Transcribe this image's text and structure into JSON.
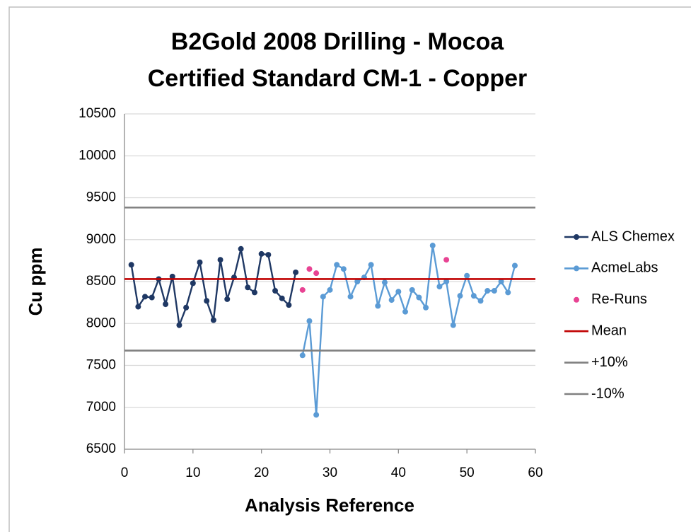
{
  "chart_data": {
    "type": "line",
    "title": "B2Gold 2008 Drilling - Mocoa",
    "subtitle": "Certified Standard CM-1 - Copper",
    "x_label": "Analysis Reference",
    "y_label": "Cu ppm",
    "xlim": [
      0,
      60
    ],
    "xticks": [
      0,
      10,
      20,
      30,
      40,
      50,
      60
    ],
    "ylim": [
      6500,
      10500
    ],
    "yticks": [
      6500,
      7000,
      7500,
      8000,
      8500,
      9000,
      9500,
      10000,
      10500
    ],
    "grid": true,
    "legend": "right",
    "series": [
      {
        "name": "ALS Chemex",
        "color": "#1f3864",
        "mode": "lines+markers",
        "x": [
          1,
          2,
          3,
          4,
          5,
          6,
          7,
          8,
          9,
          10,
          11,
          12,
          13,
          14,
          15,
          16,
          17,
          18,
          19,
          20,
          21,
          22,
          23,
          24,
          25
        ],
        "values": [
          8700,
          8200,
          8320,
          8310,
          8530,
          8230,
          8560,
          7980,
          8190,
          8480,
          8730,
          8270,
          8040,
          8760,
          8290,
          8550,
          8890,
          8430,
          8370,
          8830,
          8820,
          8390,
          8300,
          8220,
          8610
        ]
      },
      {
        "name": "AcmeLabs",
        "color": "#5b9bd5",
        "mode": "lines+markers",
        "x": [
          26,
          27,
          28,
          29,
          30,
          31,
          32,
          33,
          34,
          35,
          36,
          37,
          38,
          39,
          40,
          41,
          42,
          43,
          44,
          45,
          46,
          47,
          48,
          49,
          50,
          51,
          52,
          53,
          54,
          55,
          56,
          57
        ],
        "values": [
          7620,
          8030,
          6910,
          8320,
          8400,
          8700,
          8650,
          8320,
          8500,
          8550,
          8700,
          8210,
          8490,
          8280,
          8380,
          8140,
          8400,
          8310,
          8190,
          8930,
          8440,
          8500,
          7980,
          8330,
          8570,
          8330,
          8270,
          8390,
          8390,
          8500,
          8370,
          8690
        ]
      },
      {
        "name": "Re-Runs",
        "color": "#e84393",
        "mode": "markers",
        "x": [
          26,
          27,
          28,
          47
        ],
        "values": [
          8400,
          8650,
          8600,
          8760
        ]
      },
      {
        "name": "Mean",
        "color": "#c00000",
        "mode": "lines",
        "x": [
          0,
          60
        ],
        "values": [
          8530,
          8530
        ]
      },
      {
        "name": "+10%",
        "color": "#808080",
        "mode": "lines",
        "x": [
          0,
          60
        ],
        "values": [
          9383,
          9383
        ]
      },
      {
        "name": "-10%",
        "color": "#808080",
        "mode": "lines",
        "x": [
          0,
          60
        ],
        "values": [
          7677,
          7677
        ]
      }
    ]
  }
}
